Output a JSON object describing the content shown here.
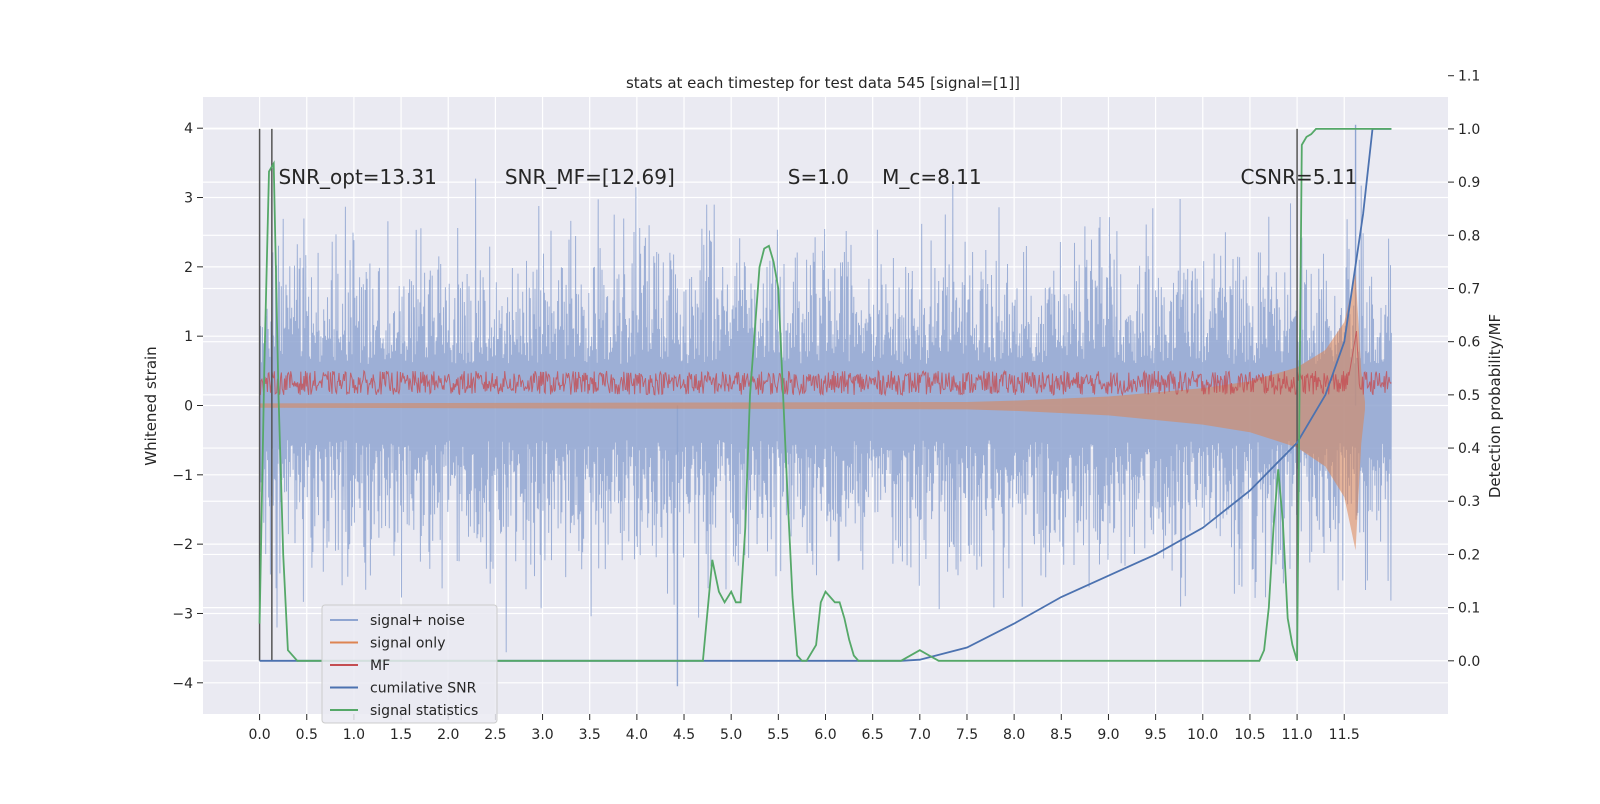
{
  "chart_data": {
    "type": "line",
    "title": "stats at each timestep for test data 545 [signal=[1]]",
    "xlabel": "",
    "ylabel": "Whitened strain",
    "y2label": "Detection probability/MF",
    "xlim": [
      -0.6,
      12.6
    ],
    "ylim": [
      -4.45,
      4.45
    ],
    "y2lim": [
      -0.1,
      1.06
    ],
    "xticks": [
      0.0,
      0.5,
      1.0,
      1.5,
      2.0,
      2.5,
      3.0,
      3.5,
      4.0,
      4.5,
      5.0,
      5.5,
      6.0,
      6.5,
      7.0,
      7.5,
      8.0,
      8.5,
      9.0,
      9.5,
      10.0,
      10.5,
      11.0,
      11.5
    ],
    "xtick_labels": [
      "0.0",
      "0.5",
      "1.0",
      "1.5",
      "2.0",
      "2.5",
      "3.0",
      "3.5",
      "4.0",
      "4.5",
      "5.0",
      "5.5",
      "6.0",
      "6.5",
      "7.0",
      "7.5",
      "8.0",
      "8.5",
      "9.0",
      "9.5",
      "10.0",
      "10.5",
      "11.0",
      "11.5"
    ],
    "yticks": [
      -4,
      -3,
      -2,
      -1,
      0,
      1,
      2,
      3,
      4
    ],
    "ytick_labels": [
      "−4",
      "−3",
      "−2",
      "−1",
      "0",
      "1",
      "2",
      "3",
      "4"
    ],
    "y2ticks": [
      0.0,
      0.1,
      0.2,
      0.3,
      0.4,
      0.5,
      0.6,
      0.7,
      0.8,
      0.9,
      1.0,
      1.1
    ],
    "y2tick_labels": [
      "0.0",
      "0.1",
      "0.2",
      "0.3",
      "0.4",
      "0.5",
      "0.6",
      "0.7",
      "0.8",
      "0.9",
      "1.0",
      "1.1"
    ],
    "grid": true,
    "legend_position": "bottom-left",
    "annotations": [
      {
        "text": "SNR_opt=13.31",
        "x": 0.2
      },
      {
        "text": "SNR_MF=[12.69]",
        "x": 2.6
      },
      {
        "text": "S=1.0",
        "x": 5.6
      },
      {
        "text": "M_c=8.11",
        "x": 6.6
      },
      {
        "text": "CSNR=5.11",
        "x": 10.4
      }
    ],
    "vertical_lines": [
      0.0,
      0.13,
      11.0
    ],
    "x_end": 12.0,
    "series": [
      {
        "name": "signal+ noise",
        "axis": "left",
        "color": "#8fa5d1",
        "description_values": {
          "typical_upper": [
            1.8,
            2.5
          ],
          "typical_lower": [
            -1.6,
            -2.4
          ],
          "peak_max": 4.05,
          "peak_min": -4.05
        }
      },
      {
        "name": "signal only",
        "axis": "left",
        "color": "#dd8452",
        "envelope_x": [
          0.0,
          7.5,
          8.0,
          9.0,
          10.0,
          10.5,
          11.0,
          11.3,
          11.5,
          11.62,
          11.68,
          11.72
        ],
        "envelope_y": [
          0.03,
          0.05,
          0.07,
          0.13,
          0.25,
          0.35,
          0.55,
          0.8,
          1.2,
          1.9,
          0.5,
          0.05
        ]
      },
      {
        "name": "MF",
        "axis": "right",
        "color": "#c44e52",
        "band": [
          0.5,
          0.545
        ],
        "spike": {
          "x": 11.63,
          "y": 0.62
        }
      },
      {
        "name": "cumilative SNR",
        "axis": "right",
        "color": "#4c72b0",
        "x": [
          0.0,
          6.8,
          7.0,
          7.5,
          8.0,
          8.5,
          9.0,
          9.5,
          10.0,
          10.5,
          11.0,
          11.3,
          11.5,
          11.7,
          11.8,
          12.0
        ],
        "y": [
          0.0,
          0.0,
          0.002,
          0.025,
          0.07,
          0.12,
          0.16,
          0.2,
          0.25,
          0.32,
          0.41,
          0.5,
          0.6,
          0.84,
          1.0,
          1.0
        ]
      },
      {
        "name": "signal statistics",
        "axis": "right",
        "color": "#55a868",
        "x": [
          0.0,
          0.05,
          0.1,
          0.15,
          0.2,
          0.25,
          0.3,
          0.4,
          0.6,
          1.0,
          2.0,
          3.0,
          4.0,
          4.7,
          4.8,
          4.87,
          4.93,
          5.0,
          5.05,
          5.1,
          5.15,
          5.2,
          5.3,
          5.35,
          5.4,
          5.45,
          5.5,
          5.55,
          5.6,
          5.65,
          5.7,
          5.75,
          5.8,
          5.9,
          5.95,
          6.0,
          6.05,
          6.1,
          6.15,
          6.2,
          6.25,
          6.3,
          6.35,
          6.4,
          6.5,
          6.6,
          6.8,
          7.0,
          7.1,
          7.2,
          7.4,
          8.0,
          8.5,
          9.0,
          9.5,
          10.0,
          10.5,
          10.6,
          10.65,
          10.7,
          10.75,
          10.8,
          10.85,
          10.9,
          10.95,
          11.0,
          11.05,
          11.1,
          11.15,
          11.2,
          11.4,
          11.6,
          12.0
        ],
        "y": [
          0.07,
          0.55,
          0.92,
          0.935,
          0.5,
          0.2,
          0.02,
          0.0,
          0.0,
          0.0,
          0.0,
          0.0,
          0.0,
          0.0,
          0.19,
          0.13,
          0.11,
          0.13,
          0.11,
          0.11,
          0.25,
          0.5,
          0.74,
          0.775,
          0.78,
          0.75,
          0.7,
          0.5,
          0.3,
          0.12,
          0.01,
          0.0,
          0.0,
          0.03,
          0.11,
          0.13,
          0.12,
          0.11,
          0.11,
          0.08,
          0.04,
          0.01,
          0.0,
          0.0,
          0.0,
          0.0,
          0.0,
          0.02,
          0.01,
          0.0,
          0.0,
          0.0,
          0.0,
          0.0,
          0.0,
          0.0,
          0.0,
          0.0,
          0.02,
          0.1,
          0.25,
          0.36,
          0.26,
          0.08,
          0.03,
          0.0,
          0.97,
          0.985,
          0.99,
          1.0,
          1.0,
          1.0,
          1.0
        ]
      }
    ]
  }
}
